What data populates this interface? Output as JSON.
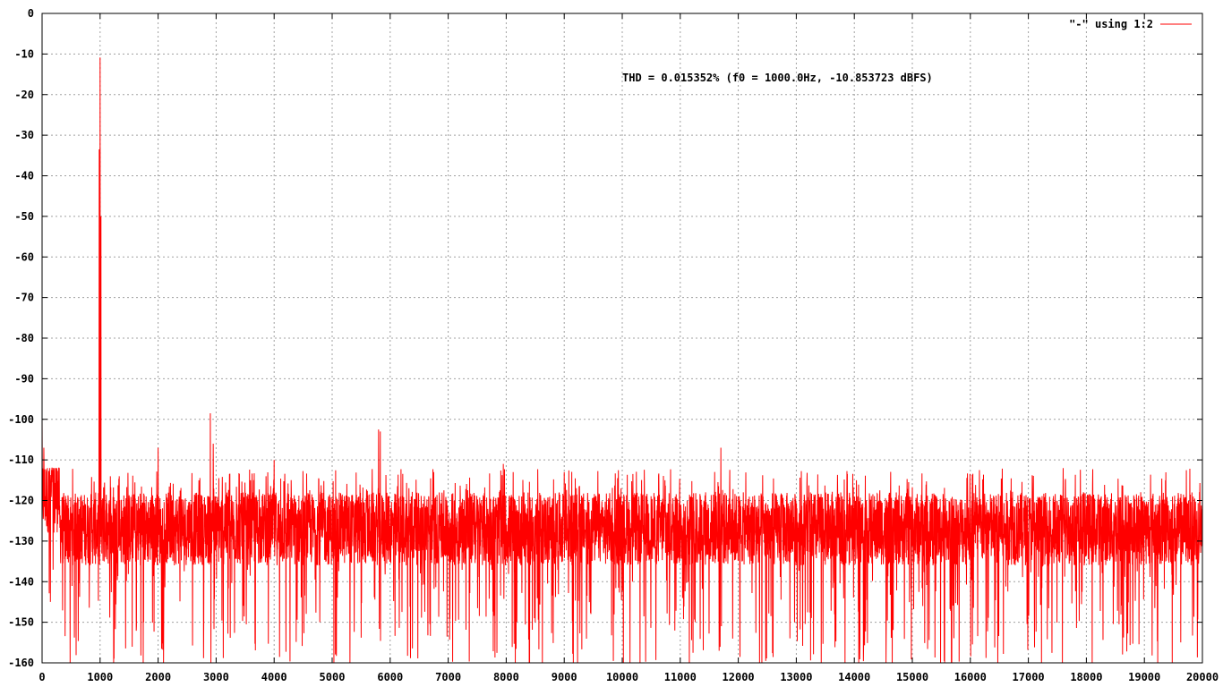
{
  "chart_data": {
    "type": "line",
    "title": "",
    "xlabel": "",
    "ylabel": "",
    "xlim": [
      0,
      20000
    ],
    "ylim": [
      -160,
      0
    ],
    "x_ticks": [
      0,
      1000,
      2000,
      3000,
      4000,
      5000,
      6000,
      7000,
      8000,
      9000,
      10000,
      11000,
      12000,
      13000,
      14000,
      15000,
      16000,
      17000,
      18000,
      19000,
      20000
    ],
    "y_ticks": [
      0,
      -10,
      -20,
      -30,
      -40,
      -50,
      -60,
      -70,
      -80,
      -90,
      -100,
      -110,
      -120,
      -130,
      -140,
      -150,
      -160
    ],
    "x_tick_labels": [
      "0",
      "1000",
      "2000",
      "3000",
      "4000",
      "5000",
      "6000",
      "7000",
      "8000",
      "9000",
      "10000",
      "11000",
      "12000",
      "13000",
      "14000",
      "15000",
      "16000",
      "17000",
      "18000",
      "19000",
      "20000"
    ],
    "y_tick_labels": [
      "0",
      "-10",
      "-20",
      "-30",
      "-40",
      "-50",
      "-60",
      "-70",
      "-80",
      "-90",
      "-100",
      "-110",
      "-120",
      "-130",
      "-140",
      "-150",
      "-160"
    ],
    "grid": true,
    "legend_position": "top-right",
    "annotation": "THD = 0.015352% (f0 = 1000.0Hz, -10.853723 dBFS)",
    "series": [
      {
        "name": "\"-\" using 1:2",
        "color": "#ff0000",
        "noise_floor_mean": -127,
        "noise_floor_span": [
          -160,
          -112
        ],
        "peaks": [
          {
            "x": 0,
            "y": -100
          },
          {
            "x": 30,
            "y": -107
          },
          {
            "x": 1000,
            "y": -10.85
          },
          {
            "x": 985,
            "y": -33.5
          },
          {
            "x": 1015,
            "y": -50
          },
          {
            "x": 2000,
            "y": -107
          },
          {
            "x": 2900,
            "y": -98.5
          },
          {
            "x": 2950,
            "y": -106
          },
          {
            "x": 4000,
            "y": -110
          },
          {
            "x": 5800,
            "y": -102.5
          },
          {
            "x": 5830,
            "y": -103
          },
          {
            "x": 6750,
            "y": -113
          },
          {
            "x": 7950,
            "y": -111
          },
          {
            "x": 9000,
            "y": -113
          },
          {
            "x": 11700,
            "y": -107
          },
          {
            "x": 17600,
            "y": -112
          }
        ]
      }
    ]
  }
}
